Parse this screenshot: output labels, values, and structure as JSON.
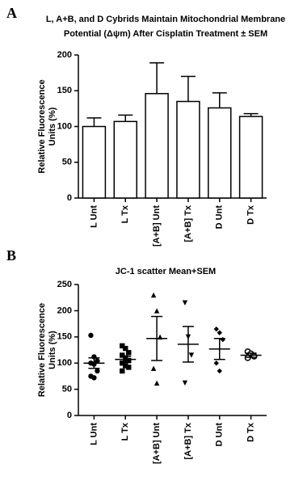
{
  "chart_data": [
    {
      "type": "bar",
      "panel_label": "A",
      "title": [
        "L, A+B, and D Cybrids Maintain Mitochondrial Membrane",
        "Potential (Δψm) After Cisplatin Treatment ± SEM"
      ],
      "y_label": [
        "Relative Fluorescence",
        "Units (%)"
      ],
      "categories": [
        "L Unt",
        "L Tx",
        "[A+B] Unt",
        "[A+B] Tx",
        "D Unt",
        "D Tx"
      ],
      "values": [
        100,
        107,
        146,
        135,
        126,
        114
      ],
      "errors": [
        12,
        9,
        43,
        35,
        21,
        4
      ],
      "color": "#ffffff",
      "ylim": [
        0,
        200
      ],
      "yticks": [
        0,
        50,
        100,
        150,
        200
      ]
    },
    {
      "type": "scatter",
      "panel_label": "B",
      "title": [
        "JC-1 scatter Mean+SEM"
      ],
      "y_label": [
        "Relative Fluorescence",
        "Units (%)"
      ],
      "categories": [
        "L Unt",
        "L Tx",
        "[A+B] Unt",
        "[A+B] Tx",
        "D Unt",
        "D Tx"
      ],
      "points": [
        [
          153,
          112,
          104,
          100,
          98,
          85,
          75,
          72
        ],
        [
          133,
          128,
          120,
          115,
          110,
          105,
          100,
          95,
          92,
          85
        ],
        [
          230,
          200,
          150,
          90,
          62
        ],
        [
          215,
          150,
          115,
          62
        ],
        [
          165,
          158,
          145,
          100,
          85
        ],
        [
          122,
          118,
          113,
          110
        ]
      ],
      "means": [
        100,
        107,
        147,
        136,
        127,
        115
      ],
      "sems": [
        10,
        6,
        42,
        34,
        20,
        4
      ],
      "markers": [
        "circle",
        "square",
        "triangle-up",
        "triangle-down",
        "diamond",
        "circle-open"
      ],
      "color": "#000000",
      "ylim": [
        0,
        250
      ],
      "yticks": [
        0,
        50,
        100,
        150,
        200,
        250
      ]
    }
  ]
}
